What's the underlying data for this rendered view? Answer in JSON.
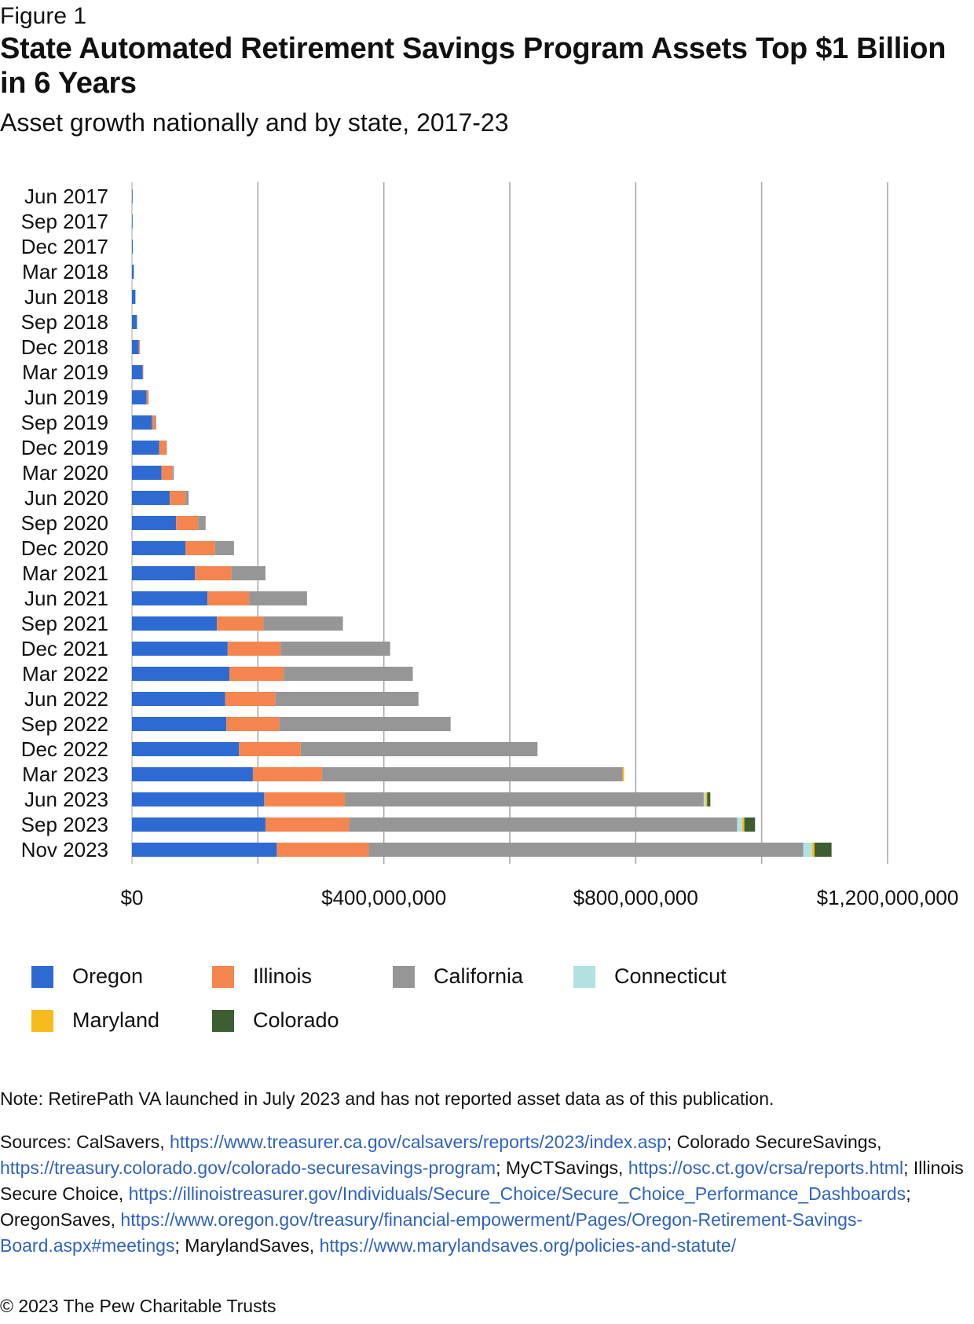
{
  "figure_label": "Figure 1",
  "chart_data": {
    "type": "bar",
    "orientation": "horizontal",
    "stacked": true,
    "title": "State Automated Retirement Savings Program Assets Top $1 Billion in 6 Years",
    "subtitle": "Asset growth nationally and by state, 2017-23",
    "xlabel": "",
    "ylabel": "",
    "xlim": [
      0,
      1200000000
    ],
    "x_ticks": [
      0,
      200000000,
      400000000,
      600000000,
      800000000,
      1000000000,
      1200000000
    ],
    "x_tick_labels": [
      "$0",
      "$400,000,000",
      "$800,000,000",
      "$1,200,000,000"
    ],
    "x_tick_label_values": [
      0,
      400000000,
      800000000,
      1200000000
    ],
    "grid": "vertical",
    "legend_position": "bottom",
    "categories": [
      "Jun 2017",
      "Sep 2017",
      "Dec 2017",
      "Mar 2018",
      "Jun 2018",
      "Sep 2018",
      "Dec 2018",
      "Mar 2019",
      "Jun 2019",
      "Sep 2019",
      "Dec 2019",
      "Mar 2020",
      "Jun 2020",
      "Sep 2020",
      "Dec 2020",
      "Mar 2021",
      "Jun 2021",
      "Sep 2021",
      "Dec 2021",
      "Mar 2022",
      "Jun 2022",
      "Sep 2022",
      "Dec 2022",
      "Mar 2023",
      "Jun 2023",
      "Sep 2023",
      "Nov 2023"
    ],
    "series": [
      {
        "name": "Oregon",
        "color": "#2d6bd3",
        "values": [
          300000,
          800000,
          1300000,
          3000000,
          5500000,
          8000000,
          11000000,
          17000000,
          23000000,
          32000000,
          43000000,
          47000000,
          60000000,
          70000000,
          85000000,
          100000000,
          120000000,
          135000000,
          152000000,
          155000000,
          148000000,
          150000000,
          170000000,
          192000000,
          210000000,
          212000000,
          230000000
        ]
      },
      {
        "name": "Illinois",
        "color": "#f4854e",
        "values": [
          0,
          0,
          0,
          0,
          0,
          0,
          1500000,
          1000000,
          2500000,
          5000000,
          11000000,
          17000000,
          25000000,
          35000000,
          47000000,
          58000000,
          66000000,
          74000000,
          84000000,
          86000000,
          80000000,
          84000000,
          98000000,
          110000000,
          128000000,
          133000000,
          146000000
        ]
      },
      {
        "name": "California",
        "color": "#969696",
        "values": [
          0,
          0,
          0,
          0,
          0,
          0,
          0,
          0,
          1000000,
          1500000,
          1500000,
          2500000,
          5000000,
          12000000,
          30000000,
          54000000,
          92000000,
          126000000,
          174000000,
          205000000,
          227000000,
          272000000,
          376000000,
          477000000,
          570000000,
          616000000,
          690000000
        ]
      },
      {
        "name": "Connecticut",
        "color": "#b1e1e1",
        "values": [
          0,
          0,
          0,
          0,
          0,
          0,
          0,
          0,
          0,
          0,
          0,
          0,
          0,
          0,
          0,
          0,
          0,
          0,
          0,
          0,
          0,
          0,
          0,
          0,
          3000000,
          8000000,
          14000000
        ]
      },
      {
        "name": "Maryland",
        "color": "#f8bb1e",
        "values": [
          0,
          0,
          0,
          0,
          0,
          0,
          0,
          0,
          0,
          0,
          0,
          0,
          0,
          0,
          0,
          0,
          0,
          0,
          0,
          0,
          0,
          0,
          0,
          2500000,
          2500000,
          3500000,
          4000000
        ]
      },
      {
        "name": "Colorado",
        "color": "#3d5e32",
        "values": [
          0,
          0,
          0,
          0,
          0,
          0,
          0,
          0,
          0,
          0,
          0,
          0,
          0,
          0,
          0,
          0,
          0,
          0,
          0,
          0,
          0,
          0,
          0,
          0,
          5000000,
          17000000,
          27000000
        ]
      }
    ]
  },
  "note": "Note: RetirePath VA launched in July 2023 and has not reported asset data as of this publication.",
  "sources": [
    {
      "text": "Sources: CalSavers, ",
      "link": false
    },
    {
      "text": "https://www.treasurer.ca.gov/calsavers/reports/2023/index.asp",
      "link": true
    },
    {
      "text": "; Colorado SecureSavings, ",
      "link": false
    },
    {
      "text": "https://treasury.colorado.gov/colorado-securesavings-program",
      "link": true
    },
    {
      "text": "; MyCTSavings, ",
      "link": false
    },
    {
      "text": "https://osc.ct.gov/crsa/reports.html",
      "link": true
    },
    {
      "text": "; Illinois Secure Choice, ",
      "link": false
    },
    {
      "text": "https://illinoistreasurer.gov/Individuals/Secure_Choice/Secure_Choice_Performance_Dashboards",
      "link": true
    },
    {
      "text": "; OregonSaves, ",
      "link": false
    },
    {
      "text": "https://www.oregon.gov/treasury/financial-empowerment/Pages/Oregon-Retirement-Savings-Board.aspx#meetings",
      "link": true
    },
    {
      "text": "; MarylandSaves, ",
      "link": false
    },
    {
      "text": "https://www.marylandsaves.org/policies-and-statute/",
      "link": true
    }
  ],
  "copyright": "© 2023 The Pew Charitable Trusts"
}
